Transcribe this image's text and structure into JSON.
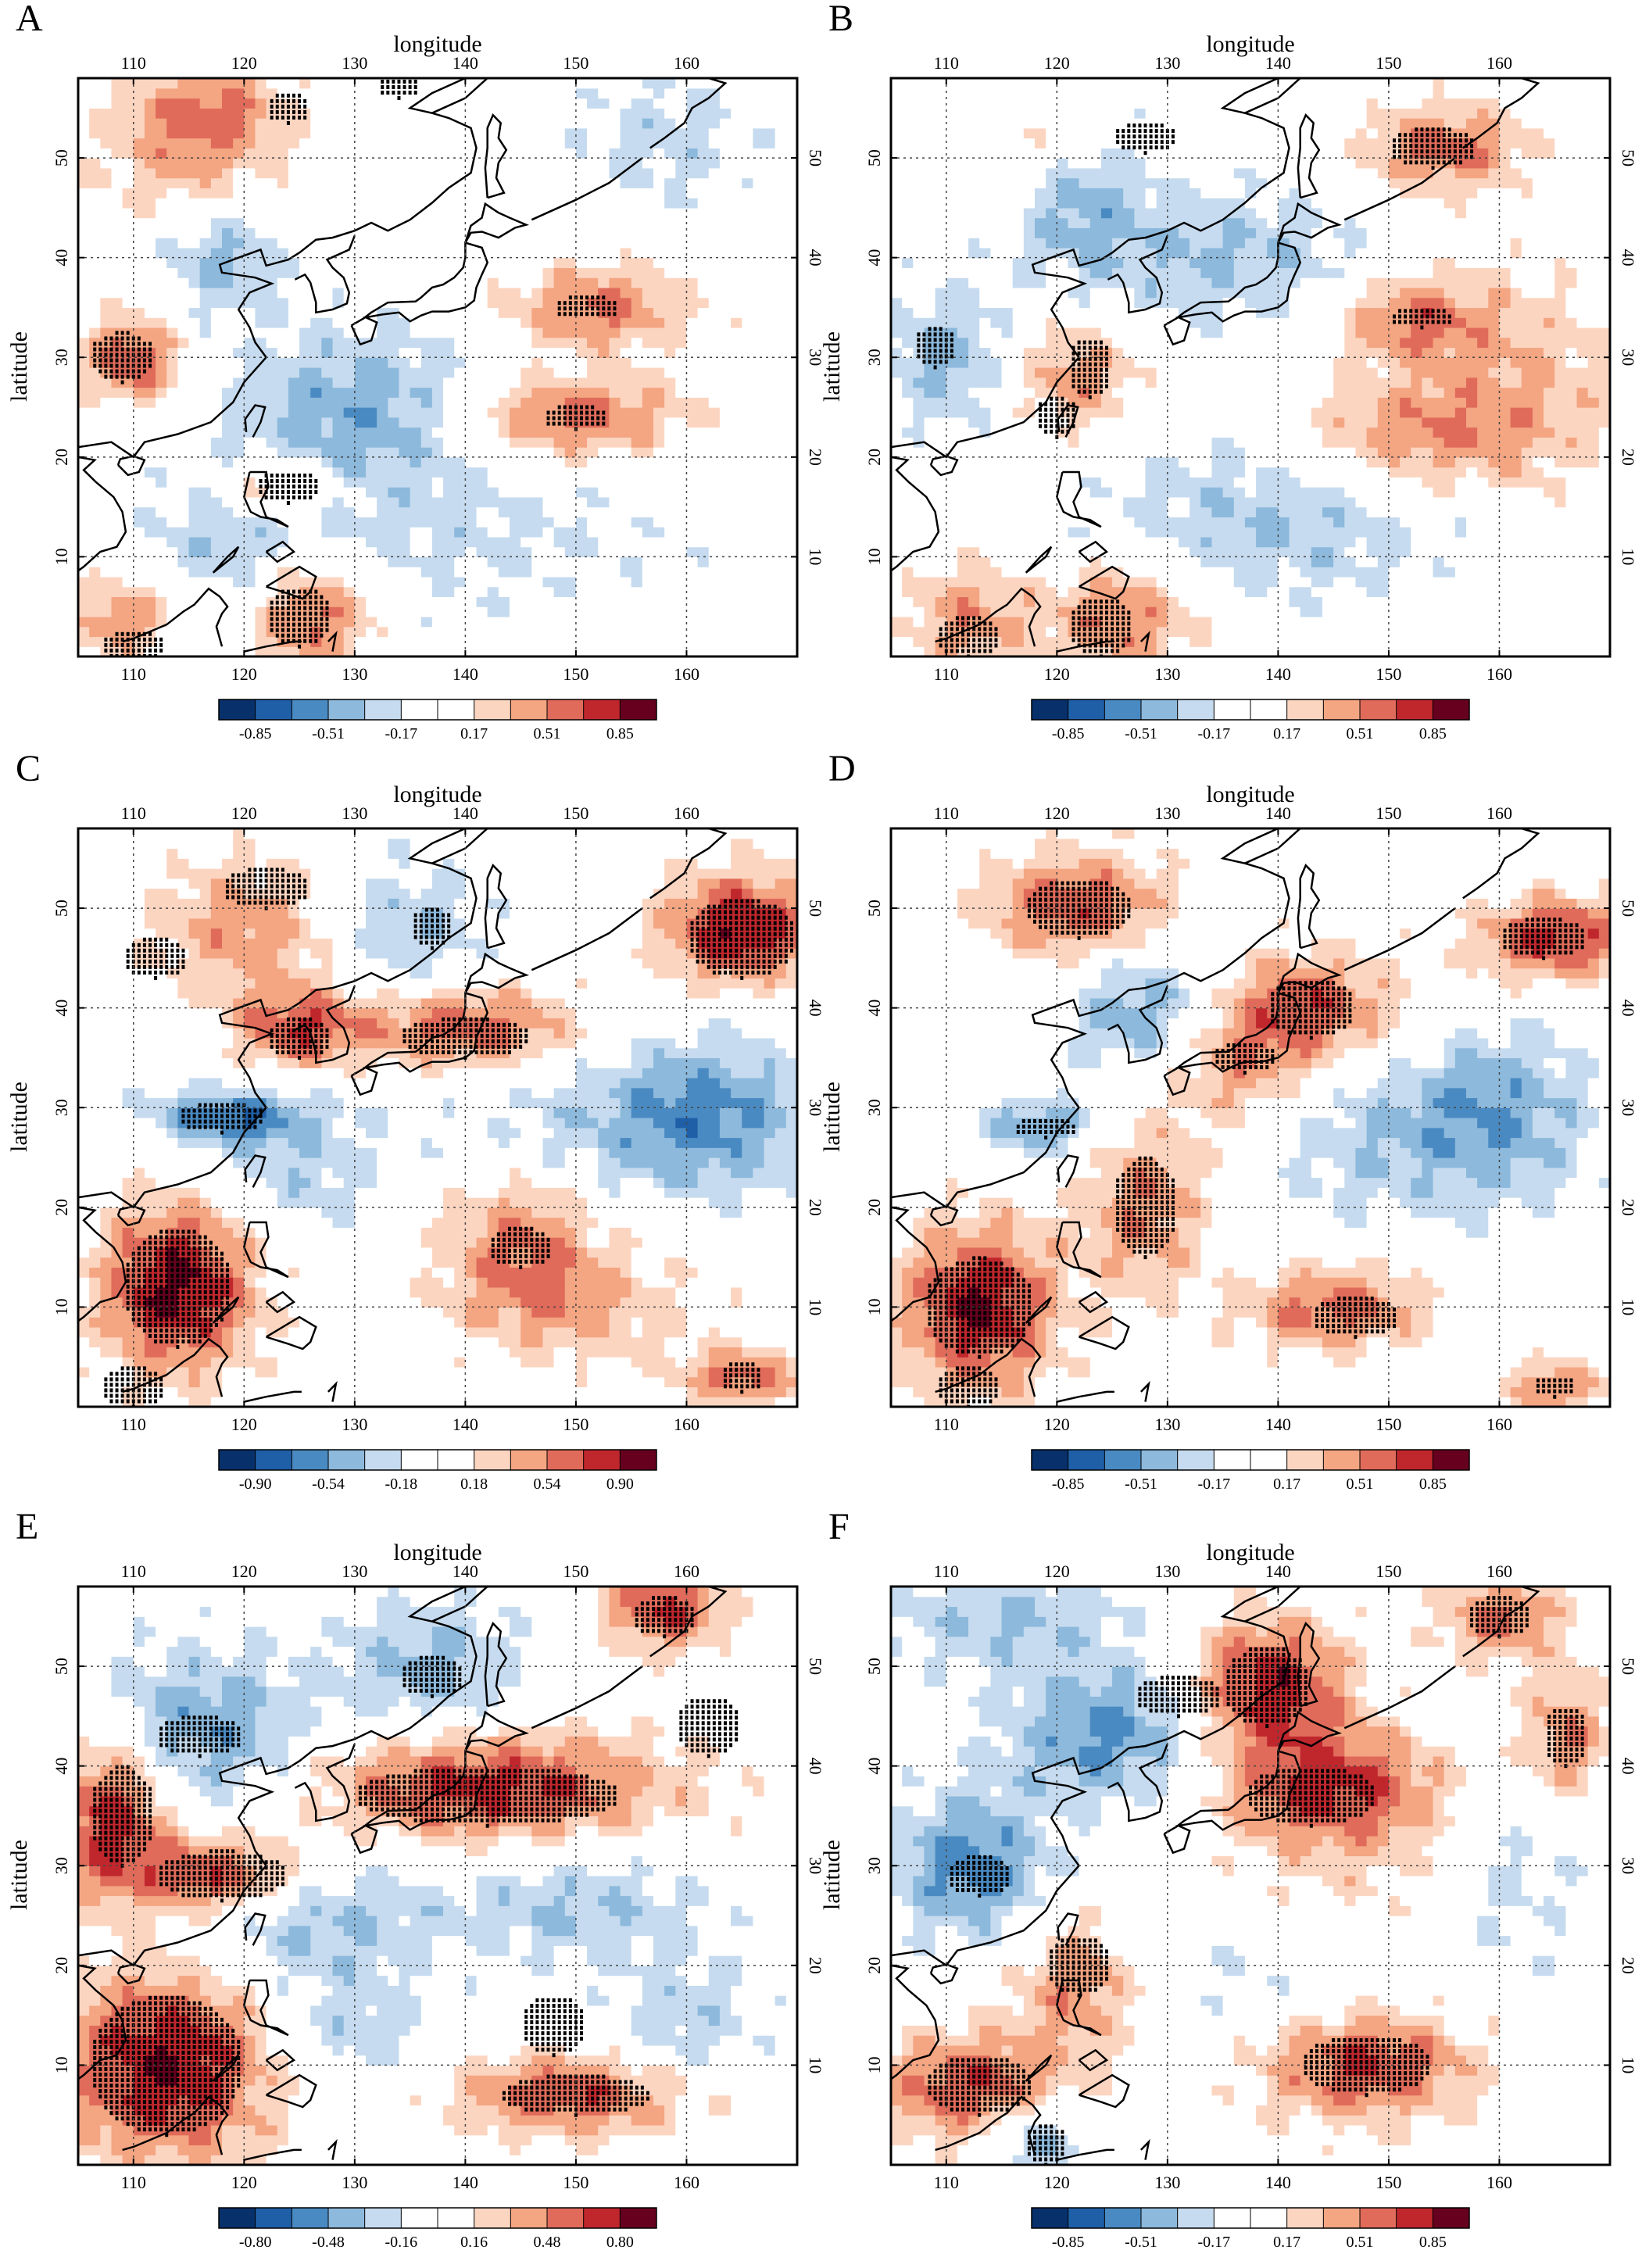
{
  "axes": {
    "lon_title": "longitude",
    "lat_title": "latitude",
    "lon_ticks": [
      "110",
      "120",
      "130",
      "140",
      "150",
      "160"
    ],
    "lat_ticks": [
      "10",
      "20",
      "30",
      "40",
      "50"
    ]
  },
  "panels": [
    {
      "id": "A",
      "letter": "A",
      "has_lat_label": true,
      "colorbar": [
        "-0.85",
        "-0.51",
        "-0.17",
        "0.17",
        "0.51",
        "0.85"
      ]
    },
    {
      "id": "B",
      "letter": "B",
      "has_lat_label": true,
      "colorbar": [
        "-0.85",
        "-0.51",
        "-0.17",
        "0.17",
        "0.51",
        "0.85"
      ]
    },
    {
      "id": "C",
      "letter": "C",
      "has_lat_label": true,
      "colorbar": [
        "-0.90",
        "-0.54",
        "-0.18",
        "0.18",
        "0.54",
        "0.90"
      ]
    },
    {
      "id": "D",
      "letter": "D",
      "has_lat_label": true,
      "colorbar": [
        "-0.85",
        "-0.51",
        "-0.17",
        "0.17",
        "0.51",
        "0.85"
      ]
    },
    {
      "id": "E",
      "letter": "E",
      "has_lat_label": true,
      "colorbar": [
        "-0.80",
        "-0.48",
        "-0.16",
        "0.16",
        "0.48",
        "0.80"
      ]
    },
    {
      "id": "F",
      "letter": "F",
      "has_lat_label": true,
      "colorbar": [
        "-0.85",
        "-0.51",
        "-0.17",
        "0.17",
        "0.51",
        "0.85"
      ]
    }
  ],
  "palette": [
    "#08306b",
    "#1f5fa8",
    "#4a8ac2",
    "#8cb9dc",
    "#c6dbef",
    "#ffffff",
    "#ffffff",
    "#fcd5c1",
    "#f4a582",
    "#e06b5a",
    "#c0272d",
    "#67001f"
  ],
  "colors": {
    "land_line": "#000000",
    "grid": "#444444",
    "stipple": "#000000"
  }
}
